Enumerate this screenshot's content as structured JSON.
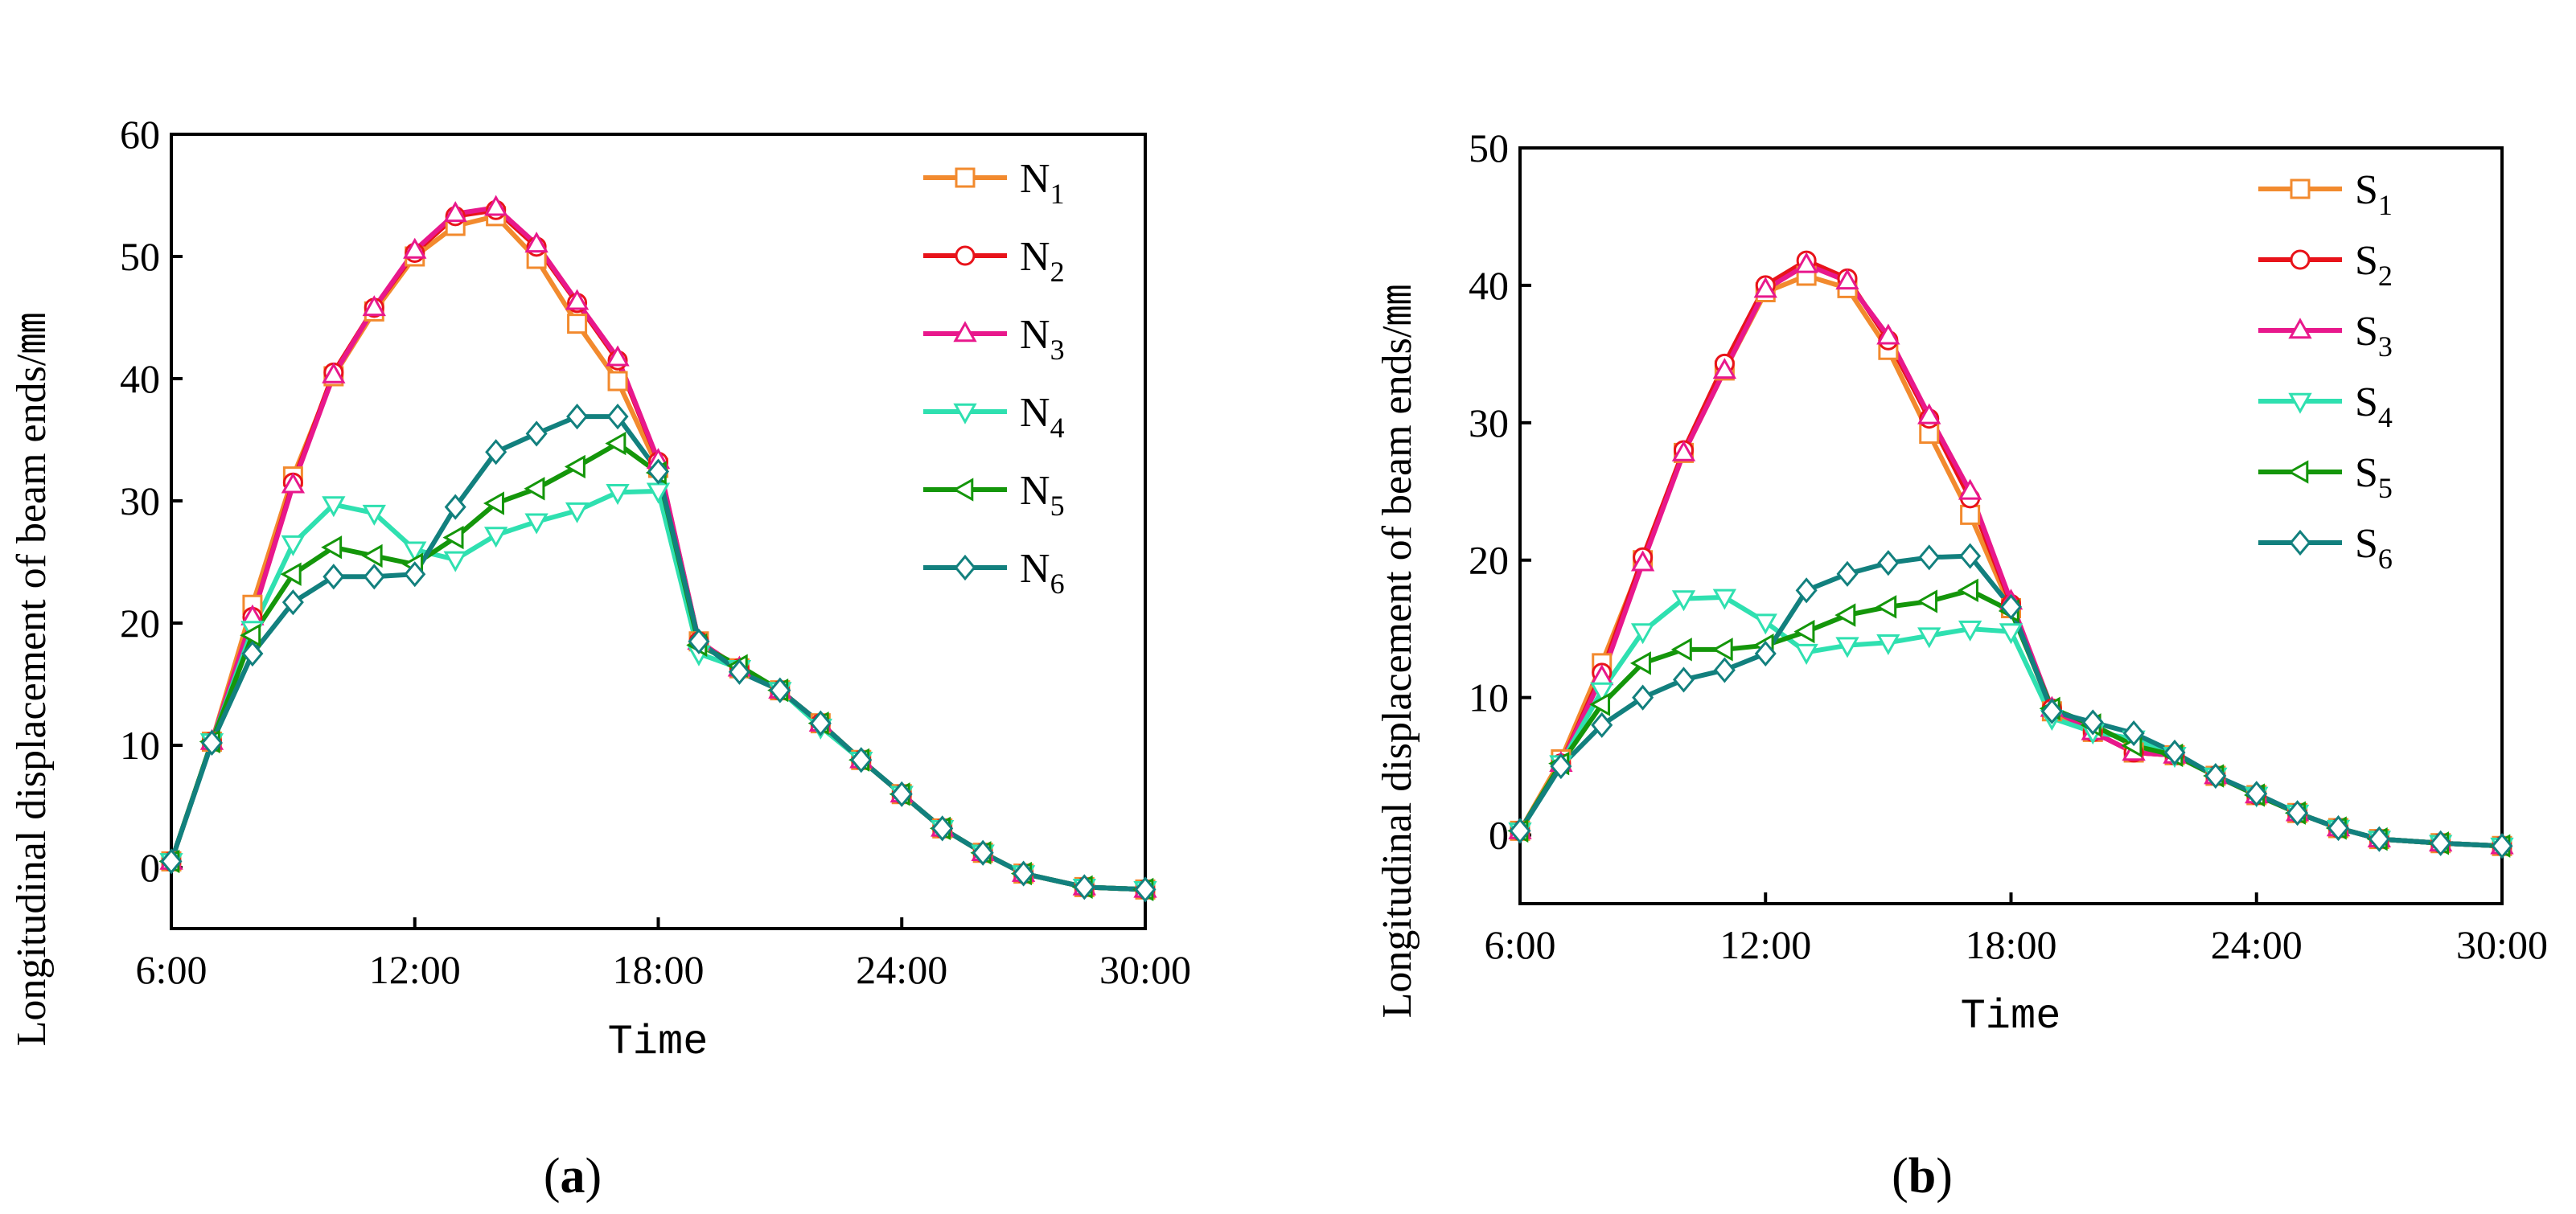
{
  "figure": {
    "time_label": "Time",
    "ylabel_main": "Longitudinal displacement of beam ends/",
    "ylabel_unit": "㎜"
  },
  "style": {
    "colors": [
      "#f28a2e",
      "#e8131a",
      "#e8188c",
      "#2fe0b0",
      "#14960a",
      "#12807e"
    ],
    "markers": [
      "square",
      "circle",
      "triangle-up",
      "triangle-down",
      "triangle-left",
      "diamond"
    ]
  },
  "chart_data": [
    {
      "type": "line",
      "panel_label": "a",
      "title": "",
      "xlabel": "Time",
      "ylabel": "Longitudinal displacement of beam ends/㎜",
      "x": [
        6,
        7,
        8,
        9,
        10,
        11,
        12,
        13,
        14,
        15,
        16,
        17,
        18,
        19,
        20,
        21,
        22,
        23,
        24,
        25,
        26,
        27,
        28.5,
        30
      ],
      "xticks": [
        6,
        12,
        18,
        24,
        30
      ],
      "xtick_labels": [
        "6:00",
        "12:00",
        "18:00",
        "24:00",
        "30:00"
      ],
      "xlim": [
        6,
        30
      ],
      "yticks": [
        0,
        10,
        20,
        30,
        40,
        50,
        60
      ],
      "ytick_labels": [
        "0",
        "10",
        "20",
        "30",
        "40",
        "50",
        "60"
      ],
      "ylim": [
        -5,
        60
      ],
      "legend_position": "top-right",
      "series": [
        {
          "name": "N",
          "sub": "1",
          "values": [
            0.5,
            10.3,
            21.5,
            32,
            40.2,
            45.5,
            50,
            52.5,
            53.3,
            49.8,
            44.5,
            39.8,
            32.7,
            18.5,
            16.3,
            14.5,
            11.8,
            8.8,
            6,
            3.2,
            1.2,
            -0.5,
            -1.6,
            -1.8
          ]
        },
        {
          "name": "N",
          "sub": "2",
          "values": [
            0.5,
            10.3,
            20.5,
            31.5,
            40.5,
            45.8,
            50.3,
            53.3,
            53.8,
            50.8,
            46.2,
            41.5,
            33.2,
            18.5,
            16.3,
            14.5,
            11.8,
            8.8,
            6,
            3.2,
            1.2,
            -0.5,
            -1.6,
            -1.8
          ]
        },
        {
          "name": "N",
          "sub": "3",
          "values": [
            0.5,
            10.3,
            20.5,
            31.3,
            40.3,
            45.8,
            50.5,
            53.5,
            54,
            51,
            46.3,
            41.7,
            33.3,
            18.5,
            16.3,
            14.5,
            11.8,
            8.8,
            6,
            3.2,
            1.2,
            -0.5,
            -1.6,
            -1.8
          ]
        },
        {
          "name": "N",
          "sub": "4",
          "values": [
            0.5,
            10.3,
            19.5,
            26.5,
            29.7,
            29,
            26,
            25.2,
            27.2,
            28.3,
            29.2,
            30.7,
            30.8,
            17.5,
            16.3,
            14.5,
            11.5,
            8.8,
            6,
            3.2,
            1.2,
            -0.5,
            -1.6,
            -1.8
          ]
        },
        {
          "name": "N",
          "sub": "5",
          "values": [
            0.5,
            10.3,
            19,
            24,
            26.2,
            25.5,
            24.8,
            27,
            29.8,
            31,
            32.8,
            34.7,
            32.3,
            18.2,
            16.5,
            14.5,
            11.8,
            8.8,
            6,
            3.2,
            1.2,
            -0.5,
            -1.6,
            -1.8
          ]
        },
        {
          "name": "N",
          "sub": "6",
          "values": [
            0.5,
            10.2,
            17.5,
            21.7,
            23.8,
            23.8,
            24,
            29.5,
            34,
            35.5,
            36.9,
            36.9,
            32.4,
            18.5,
            16,
            14.5,
            11.8,
            8.8,
            6,
            3.2,
            1.2,
            -0.5,
            -1.6,
            -1.8
          ]
        }
      ]
    },
    {
      "type": "line",
      "panel_label": "b",
      "title": "",
      "xlabel": "Time",
      "ylabel": "Longitudinal displacement of beam ends/㎜",
      "x": [
        6,
        7,
        8,
        9,
        10,
        11,
        12,
        13,
        14,
        15,
        16,
        17,
        18,
        19,
        20,
        21,
        22,
        23,
        24,
        25,
        26,
        27,
        28.5,
        30
      ],
      "xticks": [
        6,
        12,
        18,
        24,
        30
      ],
      "xtick_labels": [
        "6:00",
        "12:00",
        "18:00",
        "24:00",
        "30:00"
      ],
      "xlim": [
        6,
        30
      ],
      "yticks": [
        0,
        10,
        20,
        30,
        40,
        50
      ],
      "ytick_labels": [
        "0",
        "10",
        "20",
        "30",
        "40",
        "50"
      ],
      "ylim": [
        -5,
        50
      ],
      "legend_position": "top-right",
      "series": [
        {
          "name": "S",
          "sub": "1",
          "values": [
            0.3,
            5.5,
            12.5,
            20,
            27.8,
            33.8,
            39.5,
            40.7,
            39.8,
            35.3,
            29.2,
            23.3,
            16.5,
            9,
            7.5,
            6,
            5.8,
            4.3,
            2.9,
            1.6,
            0.5,
            -0.3,
            -0.6,
            -0.8
          ]
        },
        {
          "name": "S",
          "sub": "2",
          "values": [
            0.3,
            5.2,
            11.8,
            20.2,
            28,
            34.3,
            40,
            41.8,
            40.5,
            36,
            30.3,
            24.5,
            16.8,
            9.2,
            7.5,
            6,
            5.8,
            4.3,
            2.9,
            1.6,
            0.5,
            -0.3,
            -0.6,
            -0.8
          ]
        },
        {
          "name": "S",
          "sub": "3",
          "values": [
            0.3,
            5.2,
            11.5,
            19.8,
            27.8,
            33.8,
            39.7,
            41.5,
            40.3,
            36.3,
            30.5,
            25,
            17,
            9.2,
            7.5,
            6,
            5.8,
            4.3,
            2.9,
            1.6,
            0.5,
            -0.3,
            -0.6,
            -0.8
          ]
        },
        {
          "name": "S",
          "sub": "4",
          "values": [
            0.3,
            5.2,
            10.5,
            14.8,
            17.2,
            17.3,
            15.5,
            13.3,
            13.8,
            14,
            14.5,
            15,
            14.8,
            8.5,
            7.5,
            7,
            5.8,
            4.3,
            2.9,
            1.6,
            0.5,
            -0.3,
            -0.6,
            -0.8
          ]
        },
        {
          "name": "S",
          "sub": "5",
          "values": [
            0.3,
            5.2,
            9.5,
            12.5,
            13.5,
            13.5,
            13.8,
            14.8,
            16,
            16.6,
            17,
            17.8,
            16.3,
            9.2,
            8,
            6.5,
            5.8,
            4.3,
            2.9,
            1.6,
            0.5,
            -0.3,
            -0.6,
            -0.8
          ]
        },
        {
          "name": "S",
          "sub": "6",
          "values": [
            0.3,
            5,
            8,
            10,
            11.3,
            12,
            13.2,
            17.8,
            19,
            19.8,
            20.2,
            20.3,
            16.6,
            9,
            8.2,
            7.4,
            6,
            4.3,
            3,
            1.6,
            0.5,
            -0.3,
            -0.6,
            -0.8
          ]
        }
      ]
    }
  ]
}
